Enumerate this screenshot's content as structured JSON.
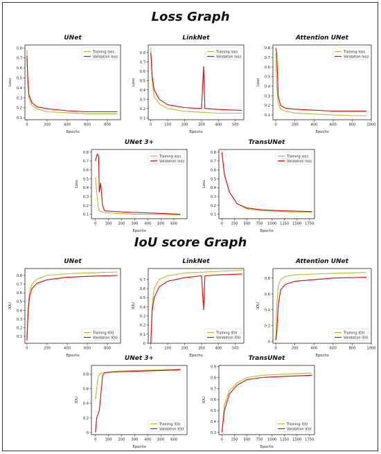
{
  "page": {
    "loss_title": "Loss Graph",
    "iou_title": "IoU score Graph"
  },
  "colors": {
    "training": "#b5bd1e",
    "validation": "#e00000"
  },
  "chart_data": [
    {
      "id": "loss-unet",
      "group": "loss",
      "type": "line",
      "title": "UNet",
      "xlabel": "Epochs",
      "ylabel": "Loss",
      "xlim": [
        -20,
        930
      ],
      "ylim": [
        0.08,
        0.83
      ],
      "xticks": [
        0,
        200,
        400,
        600,
        800
      ],
      "yticks": [
        0.1,
        0.2,
        0.3,
        0.4,
        0.5,
        0.6,
        0.7,
        0.8
      ],
      "legend": "top-right",
      "series": [
        {
          "name": "Training loss",
          "points": [
            [
              0,
              0.78
            ],
            [
              8,
              0.45
            ],
            [
              20,
              0.3
            ],
            [
              50,
              0.22
            ],
            [
              100,
              0.19
            ],
            [
              200,
              0.16
            ],
            [
              400,
              0.15
            ],
            [
              600,
              0.14
            ],
            [
              900,
              0.14
            ]
          ]
        },
        {
          "name": "Validation loss",
          "points": [
            [
              0,
              0.72
            ],
            [
              8,
              0.5
            ],
            [
              20,
              0.33
            ],
            [
              50,
              0.25
            ],
            [
              100,
              0.21
            ],
            [
              200,
              0.19
            ],
            [
              400,
              0.17
            ],
            [
              600,
              0.16
            ],
            [
              900,
              0.16
            ]
          ]
        }
      ]
    },
    {
      "id": "loss-linknet",
      "group": "loss",
      "type": "line",
      "title": "LinkNet",
      "xlabel": "Epochs",
      "ylabel": "Loss",
      "xlim": [
        -15,
        550
      ],
      "ylim": [
        0.08,
        0.88
      ],
      "xticks": [
        0,
        100,
        200,
        300,
        400,
        500
      ],
      "yticks": [
        0.1,
        0.2,
        0.3,
        0.4,
        0.5,
        0.6,
        0.7,
        0.8
      ],
      "legend": "top-right",
      "series": [
        {
          "name": "Training loss",
          "points": [
            [
              0,
              0.85
            ],
            [
              8,
              0.5
            ],
            [
              20,
              0.33
            ],
            [
              50,
              0.25
            ],
            [
              100,
              0.2
            ],
            [
              200,
              0.17
            ],
            [
              300,
              0.16
            ],
            [
              400,
              0.15
            ],
            [
              540,
              0.15
            ]
          ]
        },
        {
          "name": "Validation loss",
          "points": [
            [
              0,
              0.8
            ],
            [
              8,
              0.55
            ],
            [
              20,
              0.4
            ],
            [
              50,
              0.3
            ],
            [
              100,
              0.24
            ],
            [
              200,
              0.21
            ],
            [
              300,
              0.2
            ],
            [
              312,
              0.65
            ],
            [
              320,
              0.2
            ],
            [
              400,
              0.19
            ],
            [
              540,
              0.18
            ]
          ]
        }
      ]
    },
    {
      "id": "loss-attention-unet",
      "group": "loss",
      "type": "line",
      "title": "Attention UNet",
      "xlabel": "Epochs",
      "ylabel": "Loss",
      "xlim": [
        -30,
        1000
      ],
      "ylim": [
        0.05,
        0.83
      ],
      "xticks": [
        0,
        200,
        400,
        600,
        800,
        1000
      ],
      "yticks": [
        0.1,
        0.2,
        0.3,
        0.4,
        0.5,
        0.6,
        0.7,
        0.8
      ],
      "legend": "top-right",
      "series": [
        {
          "name": "Training loss",
          "points": [
            [
              0,
              0.75
            ],
            [
              10,
              0.4
            ],
            [
              25,
              0.22
            ],
            [
              50,
              0.16
            ],
            [
              100,
              0.14
            ],
            [
              200,
              0.12
            ],
            [
              400,
              0.11
            ],
            [
              600,
              0.1
            ],
            [
              950,
              0.09
            ]
          ]
        },
        {
          "name": "Validation loss",
          "points": [
            [
              0,
              0.8
            ],
            [
              10,
              0.75
            ],
            [
              25,
              0.3
            ],
            [
              50,
              0.2
            ],
            [
              100,
              0.17
            ],
            [
              200,
              0.16
            ],
            [
              400,
              0.15
            ],
            [
              600,
              0.14
            ],
            [
              950,
              0.14
            ]
          ]
        }
      ]
    },
    {
      "id": "loss-unet3plus",
      "group": "loss",
      "type": "line",
      "title": "UNet 3+",
      "xlabel": "Epochs",
      "ylabel": "Loss",
      "xlim": [
        -30,
        700
      ],
      "ylim": [
        0.05,
        0.83
      ],
      "xticks": [
        0,
        100,
        200,
        300,
        400,
        500,
        600
      ],
      "yticks": [
        0.1,
        0.2,
        0.3,
        0.4,
        0.5,
        0.6,
        0.7,
        0.8
      ],
      "legend": "top-right",
      "series": [
        {
          "name": "Training loss",
          "points": [
            [
              0,
              0.52
            ],
            [
              10,
              0.35
            ],
            [
              20,
              0.2
            ],
            [
              30,
              0.14
            ],
            [
              60,
              0.12
            ],
            [
              150,
              0.11
            ],
            [
              300,
              0.1
            ],
            [
              500,
              0.1
            ],
            [
              650,
              0.09
            ]
          ]
        },
        {
          "name": "Validation loss",
          "points": [
            [
              0,
              0.7
            ],
            [
              15,
              0.78
            ],
            [
              25,
              0.75
            ],
            [
              30,
              0.35
            ],
            [
              40,
              0.45
            ],
            [
              55,
              0.2
            ],
            [
              70,
              0.14
            ],
            [
              150,
              0.13
            ],
            [
              300,
              0.12
            ],
            [
              500,
              0.11
            ],
            [
              650,
              0.1
            ]
          ]
        }
      ]
    },
    {
      "id": "loss-transunet",
      "group": "loss",
      "type": "line",
      "title": "TransUNet",
      "xlabel": "Epochs",
      "ylabel": "Loss",
      "xlim": [
        -60,
        1850
      ],
      "ylim": [
        0.05,
        0.83
      ],
      "xticks": [
        0,
        250,
        500,
        750,
        1000,
        1250,
        1500,
        1750
      ],
      "yticks": [
        0.1,
        0.2,
        0.3,
        0.4,
        0.5,
        0.6,
        0.7,
        0.8
      ],
      "legend": "top-right",
      "series": [
        {
          "name": "Training loss",
          "points": [
            [
              0,
              0.8
            ],
            [
              50,
              0.55
            ],
            [
              150,
              0.35
            ],
            [
              300,
              0.22
            ],
            [
              500,
              0.16
            ],
            [
              800,
              0.14
            ],
            [
              1200,
              0.13
            ],
            [
              1800,
              0.12
            ]
          ]
        },
        {
          "name": "Validation loss",
          "points": [
            [
              0,
              0.8
            ],
            [
              50,
              0.55
            ],
            [
              150,
              0.35
            ],
            [
              300,
              0.22
            ],
            [
              500,
              0.17
            ],
            [
              800,
              0.15
            ],
            [
              1200,
              0.14
            ],
            [
              1800,
              0.13
            ]
          ]
        }
      ]
    },
    {
      "id": "iou-unet",
      "group": "iou",
      "type": "line",
      "title": "UNet",
      "xlabel": "Epochs",
      "ylabel": "IOU",
      "xlim": [
        -20,
        930
      ],
      "ylim": [
        0.02,
        0.88
      ],
      "xticks": [
        0,
        200,
        400,
        600,
        800
      ],
      "yticks": [
        0.1,
        0.2,
        0.3,
        0.4,
        0.5,
        0.6,
        0.7,
        0.8
      ],
      "legend": "bottom-right",
      "series": [
        {
          "name": "Training IOU",
          "points": [
            [
              0,
              0.05
            ],
            [
              10,
              0.4
            ],
            [
              25,
              0.6
            ],
            [
              50,
              0.7
            ],
            [
              100,
              0.76
            ],
            [
              200,
              0.8
            ],
            [
              400,
              0.82
            ],
            [
              600,
              0.83
            ],
            [
              900,
              0.84
            ]
          ]
        },
        {
          "name": "Validation IOU",
          "points": [
            [
              0,
              0.05
            ],
            [
              10,
              0.35
            ],
            [
              25,
              0.55
            ],
            [
              50,
              0.65
            ],
            [
              100,
              0.71
            ],
            [
              200,
              0.75
            ],
            [
              400,
              0.78
            ],
            [
              600,
              0.79
            ],
            [
              900,
              0.8
            ]
          ]
        }
      ]
    },
    {
      "id": "iou-linknet",
      "group": "iou",
      "type": "line",
      "title": "LinkNet",
      "xlabel": "Epochs",
      "ylabel": "IOU",
      "xlim": [
        -15,
        550
      ],
      "ylim": [
        0.0,
        0.82
      ],
      "xticks": [
        0,
        100,
        200,
        300,
        400,
        500
      ],
      "yticks": [
        0.0,
        0.1,
        0.2,
        0.3,
        0.4,
        0.5,
        0.6,
        0.7
      ],
      "legend": "bottom-right",
      "series": [
        {
          "name": "Training IOU",
          "points": [
            [
              0,
              0.0
            ],
            [
              8,
              0.4
            ],
            [
              20,
              0.6
            ],
            [
              50,
              0.7
            ],
            [
              100,
              0.74
            ],
            [
              200,
              0.77
            ],
            [
              300,
              0.78
            ],
            [
              400,
              0.79
            ],
            [
              540,
              0.8
            ]
          ]
        },
        {
          "name": "Validation IOU",
          "points": [
            [
              0,
              0.0
            ],
            [
              8,
              0.35
            ],
            [
              20,
              0.5
            ],
            [
              50,
              0.62
            ],
            [
              100,
              0.68
            ],
            [
              200,
              0.72
            ],
            [
              300,
              0.74
            ],
            [
              312,
              0.37
            ],
            [
              320,
              0.74
            ],
            [
              400,
              0.75
            ],
            [
              540,
              0.76
            ]
          ]
        }
      ]
    },
    {
      "id": "iou-attention-unet",
      "group": "iou",
      "type": "line",
      "title": "Attention UNet",
      "xlabel": "Epochs",
      "ylabel": "IOU",
      "xlim": [
        -30,
        1000
      ],
      "ylim": [
        -0.02,
        0.92
      ],
      "xticks": [
        0,
        200,
        400,
        600,
        800,
        1000
      ],
      "yticks": [
        0.0,
        0.2,
        0.4,
        0.6,
        0.8
      ],
      "legend": "bottom-right",
      "series": [
        {
          "name": "Training IOU",
          "points": [
            [
              0,
              0.02
            ],
            [
              10,
              0.45
            ],
            [
              25,
              0.7
            ],
            [
              50,
              0.78
            ],
            [
              100,
              0.82
            ],
            [
              200,
              0.84
            ],
            [
              400,
              0.85
            ],
            [
              600,
              0.86
            ],
            [
              950,
              0.87
            ]
          ]
        },
        {
          "name": "Validation IOU",
          "points": [
            [
              0,
              0.02
            ],
            [
              10,
              0.1
            ],
            [
              25,
              0.45
            ],
            [
              50,
              0.65
            ],
            [
              100,
              0.72
            ],
            [
              200,
              0.76
            ],
            [
              400,
              0.78
            ],
            [
              600,
              0.8
            ],
            [
              950,
              0.81
            ]
          ]
        }
      ]
    },
    {
      "id": "iou-unet3plus",
      "group": "iou",
      "type": "line",
      "title": "UNet 3+",
      "xlabel": "Epochs",
      "ylabel": "IOU",
      "xlim": [
        -30,
        700
      ],
      "ylim": [
        -0.03,
        0.92
      ],
      "xticks": [
        0,
        100,
        200,
        300,
        400,
        500,
        600
      ],
      "yticks": [
        0.0,
        0.2,
        0.4,
        0.6,
        0.8
      ],
      "legend": "bottom-right",
      "series": [
        {
          "name": "Training IOU",
          "points": [
            [
              0,
              0.45
            ],
            [
              10,
              0.6
            ],
            [
              20,
              0.75
            ],
            [
              30,
              0.8
            ],
            [
              60,
              0.82
            ],
            [
              150,
              0.84
            ],
            [
              300,
              0.85
            ],
            [
              500,
              0.86
            ],
            [
              650,
              0.87
            ]
          ]
        },
        {
          "name": "Validation IOU",
          "points": [
            [
              0,
              0.0
            ],
            [
              10,
              0.2
            ],
            [
              20,
              0.25
            ],
            [
              30,
              0.3
            ],
            [
              45,
              0.58
            ],
            [
              55,
              0.78
            ],
            [
              70,
              0.82
            ],
            [
              150,
              0.83
            ],
            [
              300,
              0.84
            ],
            [
              500,
              0.85
            ],
            [
              650,
              0.86
            ]
          ]
        }
      ]
    },
    {
      "id": "iou-transunet",
      "group": "iou",
      "type": "line",
      "title": "TransUNet",
      "xlabel": "Epochs",
      "ylabel": "IOU",
      "xlim": [
        -60,
        1850
      ],
      "ylim": [
        0.28,
        0.91
      ],
      "xticks": [
        0,
        250,
        500,
        750,
        1000,
        1250,
        1500,
        1750
      ],
      "yticks": [
        0.3,
        0.4,
        0.5,
        0.6,
        0.7,
        0.8,
        0.9
      ],
      "legend": "bottom-right",
      "series": [
        {
          "name": "Training IOU",
          "points": [
            [
              0,
              0.3
            ],
            [
              50,
              0.55
            ],
            [
              150,
              0.68
            ],
            [
              300,
              0.75
            ],
            [
              500,
              0.8
            ],
            [
              800,
              0.82
            ],
            [
              1200,
              0.83
            ],
            [
              1800,
              0.84
            ]
          ]
        },
        {
          "name": "Validation IOU",
          "points": [
            [
              0,
              0.3
            ],
            [
              50,
              0.5
            ],
            [
              150,
              0.65
            ],
            [
              300,
              0.73
            ],
            [
              500,
              0.78
            ],
            [
              800,
              0.8
            ],
            [
              1200,
              0.81
            ],
            [
              1800,
              0.82
            ]
          ]
        }
      ]
    }
  ]
}
